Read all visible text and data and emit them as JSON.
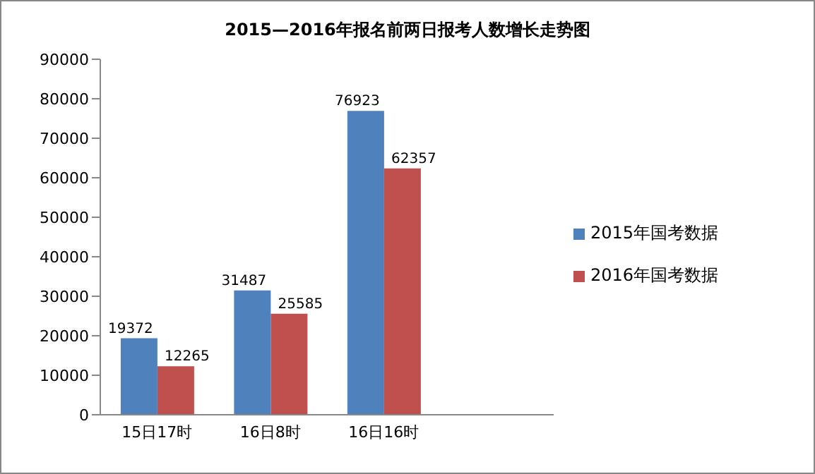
{
  "chart_data": {
    "type": "bar",
    "title": "2015—2016年报名前两日报考人数增长走势图",
    "categories": [
      "15日17时",
      "16日8时",
      "16日16时",
      null
    ],
    "series": [
      {
        "name": "2015年国考数据",
        "color": "#4f81bd",
        "values": [
          19372,
          31487,
          76923,
          null
        ]
      },
      {
        "name": "2016年国考数据",
        "color": "#c0504d",
        "values": [
          12265,
          25585,
          62357,
          null
        ]
      }
    ],
    "ylim": [
      0,
      90000
    ],
    "yticks": [
      0,
      10000,
      20000,
      30000,
      40000,
      50000,
      60000,
      70000,
      80000,
      90000
    ],
    "legend": "right",
    "data_labels": true
  }
}
